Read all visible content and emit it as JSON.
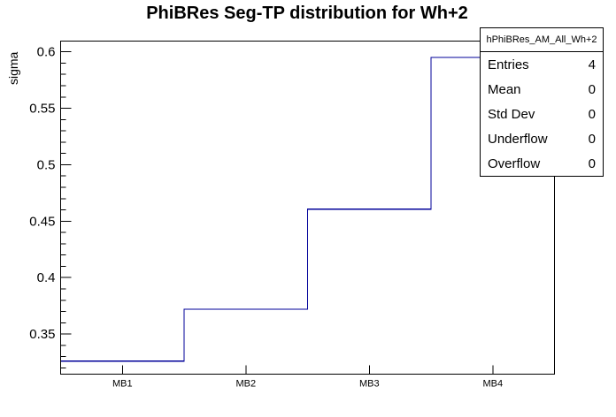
{
  "chart_data": {
    "type": "step-histogram",
    "title": "PhiBRes Seg-TP distribution for Wh+2",
    "ylabel": "sigma",
    "xlabel": "",
    "categories": [
      "MB1",
      "MB2",
      "MB3",
      "MB4"
    ],
    "values": [
      0.326,
      0.372,
      0.4605,
      0.595
    ],
    "ylim": [
      0.3145,
      0.6095
    ],
    "ytick_values": [
      0.35,
      0.4,
      0.45,
      0.5,
      0.55,
      0.6
    ],
    "ytick_labels": [
      "0.35",
      "0.4",
      "0.45",
      "0.5",
      "0.55",
      "0.6"
    ],
    "ytick_minor_step": 0.01,
    "grid": false,
    "legend_position": "none",
    "line_color": "#000099",
    "frame_color": "#000000",
    "text_color": "#000000",
    "background_color": "#ffffff"
  },
  "stats_box": {
    "header": "hPhiBRes_AM_All_Wh+2",
    "rows": [
      {
        "label": "Entries",
        "value": "4"
      },
      {
        "label": "Mean",
        "value": "0"
      },
      {
        "label": "Std Dev",
        "value": "0"
      },
      {
        "label": "Underflow",
        "value": "0"
      },
      {
        "label": "Overflow",
        "value": "0"
      }
    ]
  }
}
